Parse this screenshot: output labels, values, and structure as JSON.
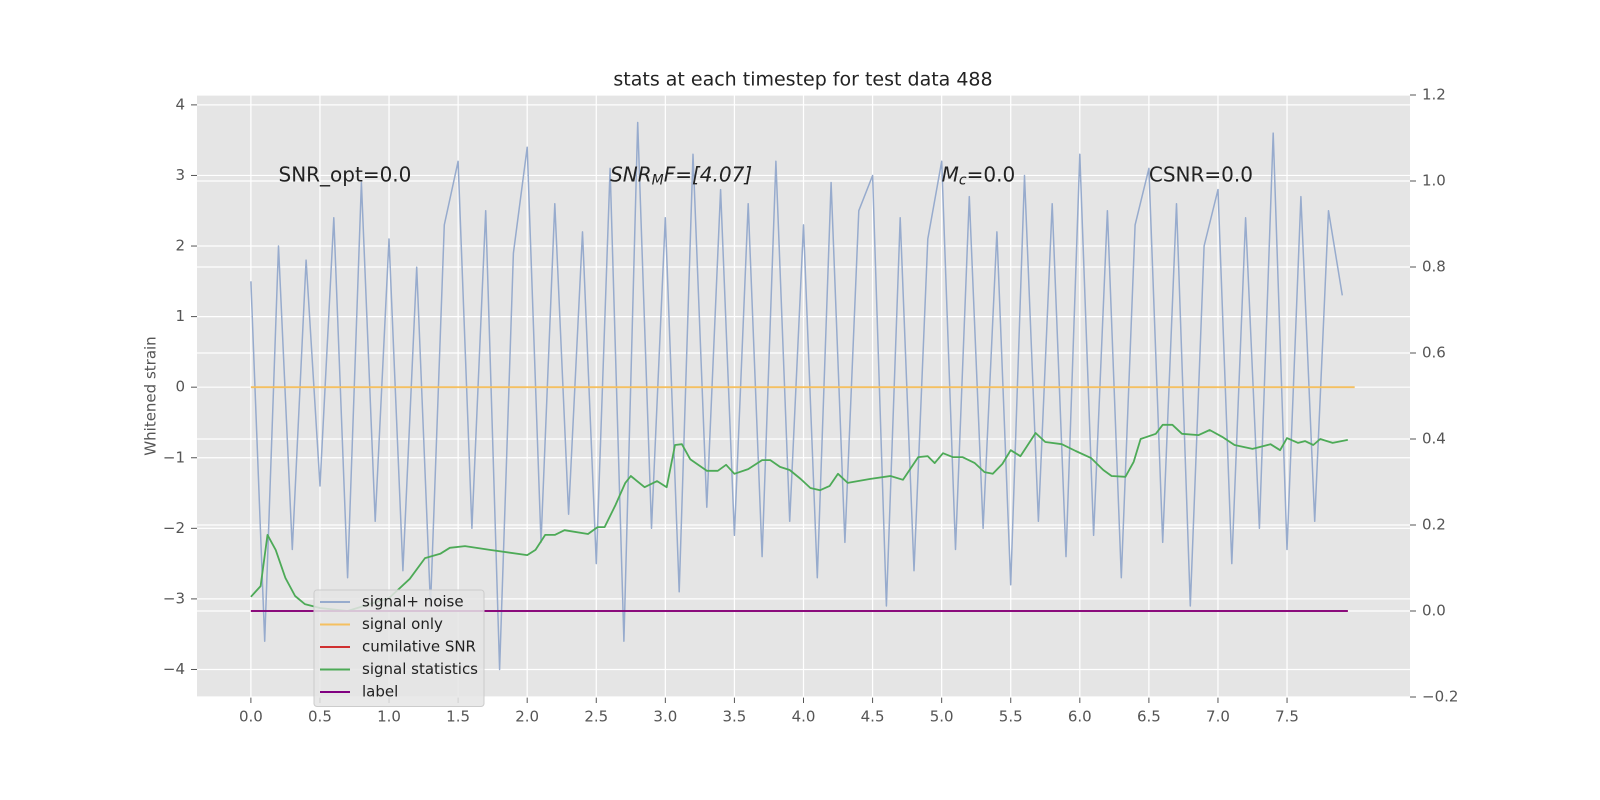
{
  "chart_data": {
    "type": "line",
    "title": "stats at each timestep for test data 488",
    "y_label": "Whitened strain",
    "xlim": [
      -0.39,
      8.39
    ],
    "ylim": [
      -4.39,
      4.14
    ],
    "y2lim": [
      -0.2,
      1.2
    ],
    "xticks": [
      {
        "value": 0,
        "label": "0.0"
      },
      {
        "value": 0.5,
        "label": "0.5"
      },
      {
        "value": 1,
        "label": "1.0"
      },
      {
        "value": 1.5,
        "label": "1.5"
      },
      {
        "value": 2,
        "label": "2.0"
      },
      {
        "value": 2.5,
        "label": "2.5"
      },
      {
        "value": 3,
        "label": "3.0"
      },
      {
        "value": 3.5,
        "label": "3.5"
      },
      {
        "value": 4,
        "label": "4.0"
      },
      {
        "value": 4.5,
        "label": "4.5"
      },
      {
        "value": 5,
        "label": "5.0"
      },
      {
        "value": 5.5,
        "label": "5.5"
      },
      {
        "value": 6,
        "label": "6.0"
      },
      {
        "value": 6.5,
        "label": "6.5"
      },
      {
        "value": 7,
        "label": "7.0"
      },
      {
        "value": 7.5,
        "label": "7.5"
      }
    ],
    "yticks": [
      {
        "value": -4,
        "label": "−4"
      },
      {
        "value": -3,
        "label": "−3"
      },
      {
        "value": -2,
        "label": "−2"
      },
      {
        "value": -1,
        "label": "−1"
      },
      0,
      1,
      2,
      3,
      4
    ],
    "y2ticks": [
      {
        "value": -0.2,
        "label": "−0.2"
      },
      {
        "value": 0,
        "label": "0.0"
      },
      {
        "value": 0.2,
        "label": "0.2"
      },
      {
        "value": 0.4,
        "label": "0.4"
      },
      {
        "value": 0.6,
        "label": "0.6"
      },
      {
        "value": 0.8,
        "label": "0.8"
      },
      {
        "value": 1,
        "label": "1.0"
      },
      {
        "value": 1.2,
        "label": "1.2"
      }
    ],
    "grid": true,
    "legend": "lower left",
    "annotations": [
      {
        "x": 0.2,
        "y": 3.0,
        "base": "SNR_opt=0.0"
      },
      {
        "x": 2.6,
        "y": 3.0,
        "base": "SNR",
        "sub": "M",
        "rest": "F=[4.07]"
      },
      {
        "x": 5.0,
        "y": 3.0,
        "base": "M",
        "sub": "c",
        "rest": "=0.0"
      },
      {
        "x": 6.5,
        "y": 3.0,
        "base": "CSNR=0.0"
      }
    ],
    "series": [
      {
        "name": "signal+ noise",
        "color": "#97abcd",
        "x": [
          0.0,
          0.1,
          0.2,
          0.3,
          0.4,
          0.5,
          0.6,
          0.7,
          0.8,
          0.9,
          1.0,
          1.1,
          1.2,
          1.3,
          1.4,
          1.5,
          1.6,
          1.7,
          1.8,
          1.9,
          2.0,
          2.1,
          2.2,
          2.3,
          2.4,
          2.5,
          2.6,
          2.7,
          2.8,
          2.9,
          3.0,
          3.1,
          3.2,
          3.3,
          3.4,
          3.5,
          3.6,
          3.7,
          3.8,
          3.9,
          4.0,
          4.1,
          4.2,
          4.3,
          4.4,
          4.5,
          4.6,
          4.7,
          4.8,
          4.9,
          5.0,
          5.1,
          5.2,
          5.3,
          5.4,
          5.5,
          5.6,
          5.7,
          5.8,
          5.9,
          6.0,
          6.1,
          6.2,
          6.3,
          6.4,
          6.5,
          6.6,
          6.7,
          6.8,
          6.9,
          7.0,
          7.1,
          7.2,
          7.3,
          7.4,
          7.5,
          7.6,
          7.7,
          7.8,
          7.9
        ],
        "values": [
          1.5,
          -3.6,
          2.0,
          -2.3,
          1.8,
          -1.4,
          2.4,
          -2.7,
          2.9,
          -1.9,
          2.1,
          -2.6,
          1.7,
          -3.1,
          2.3,
          3.2,
          -2.0,
          2.5,
          -4.0,
          1.9,
          3.4,
          -2.2,
          2.6,
          -1.8,
          2.2,
          -2.5,
          3.1,
          -3.6,
          3.75,
          -2.0,
          2.4,
          -2.9,
          3.3,
          -1.7,
          2.8,
          -2.1,
          2.6,
          -2.4,
          3.2,
          -1.9,
          2.3,
          -2.7,
          2.9,
          -2.2,
          2.5,
          3.0,
          -3.1,
          2.4,
          -2.6,
          2.1,
          3.2,
          -2.3,
          2.7,
          -2.0,
          2.2,
          -2.8,
          3.0,
          -1.9,
          2.6,
          -2.4,
          3.3,
          -2.1,
          2.5,
          -2.7,
          2.3,
          3.1,
          -2.2,
          2.6,
          -3.1,
          2.0,
          2.8,
          -2.5,
          2.4,
          -2.0,
          3.6,
          -2.3,
          2.7,
          -1.9,
          2.5,
          1.3
        ]
      },
      {
        "name": "signal only",
        "color": "#f5c060",
        "x": [
          0,
          7.99
        ],
        "values": [
          0,
          0
        ]
      },
      {
        "name": "cumilative SNR",
        "color": "#d03030",
        "axis": "y2",
        "x": [
          0,
          7.94
        ],
        "values": [
          0,
          0
        ]
      },
      {
        "name": "signal statistics",
        "color": "#4daa57",
        "axis": "y2",
        "x": [
          0,
          0.07,
          0.12,
          0.18,
          0.25,
          0.32,
          0.39,
          0.5,
          0.7,
          1.0,
          1.15,
          1.26,
          1.37,
          1.44,
          1.55,
          1.73,
          2.0,
          2.06,
          2.13,
          2.2,
          2.27,
          2.44,
          2.51,
          2.56,
          2.64,
          2.71,
          2.75,
          2.85,
          2.94,
          3.01,
          3.07,
          3.12,
          3.18,
          3.3,
          3.38,
          3.44,
          3.5,
          3.6,
          3.7,
          3.76,
          3.83,
          3.9,
          3.98,
          4.05,
          4.12,
          4.19,
          4.25,
          4.32,
          4.48,
          4.63,
          4.72,
          4.83,
          4.9,
          4.95,
          5.01,
          5.08,
          5.15,
          5.24,
          5.31,
          5.37,
          5.44,
          5.5,
          5.57,
          5.68,
          5.75,
          5.87,
          5.97,
          6.08,
          6.17,
          6.23,
          6.33,
          6.39,
          6.44,
          6.55,
          6.6,
          6.67,
          6.74,
          6.86,
          6.94,
          7.03,
          7.12,
          7.25,
          7.38,
          7.45,
          7.5,
          7.58,
          7.63,
          7.69,
          7.74,
          7.83,
          7.94
        ],
        "values": [
          0.033,
          0.058,
          0.177,
          0.142,
          0.077,
          0.035,
          0.016,
          0.007,
          0.0,
          0.03,
          0.075,
          0.123,
          0.133,
          0.147,
          0.151,
          0.142,
          0.13,
          0.142,
          0.177,
          0.177,
          0.188,
          0.179,
          0.195,
          0.195,
          0.247,
          0.298,
          0.314,
          0.288,
          0.302,
          0.288,
          0.386,
          0.388,
          0.353,
          0.326,
          0.326,
          0.34,
          0.319,
          0.33,
          0.351,
          0.351,
          0.335,
          0.328,
          0.307,
          0.286,
          0.281,
          0.291,
          0.319,
          0.298,
          0.307,
          0.314,
          0.305,
          0.358,
          0.36,
          0.344,
          0.367,
          0.358,
          0.358,
          0.344,
          0.323,
          0.319,
          0.342,
          0.374,
          0.36,
          0.414,
          0.393,
          0.388,
          0.372,
          0.356,
          0.328,
          0.314,
          0.312,
          0.347,
          0.4,
          0.412,
          0.433,
          0.433,
          0.412,
          0.409,
          0.421,
          0.405,
          0.386,
          0.377,
          0.388,
          0.374,
          0.402,
          0.391,
          0.395,
          0.386,
          0.4,
          0.391,
          0.398
        ]
      },
      {
        "name": "label",
        "color": "#800080",
        "axis": "y2",
        "x": [
          0,
          7.94
        ],
        "values": [
          0,
          0
        ]
      }
    ]
  }
}
